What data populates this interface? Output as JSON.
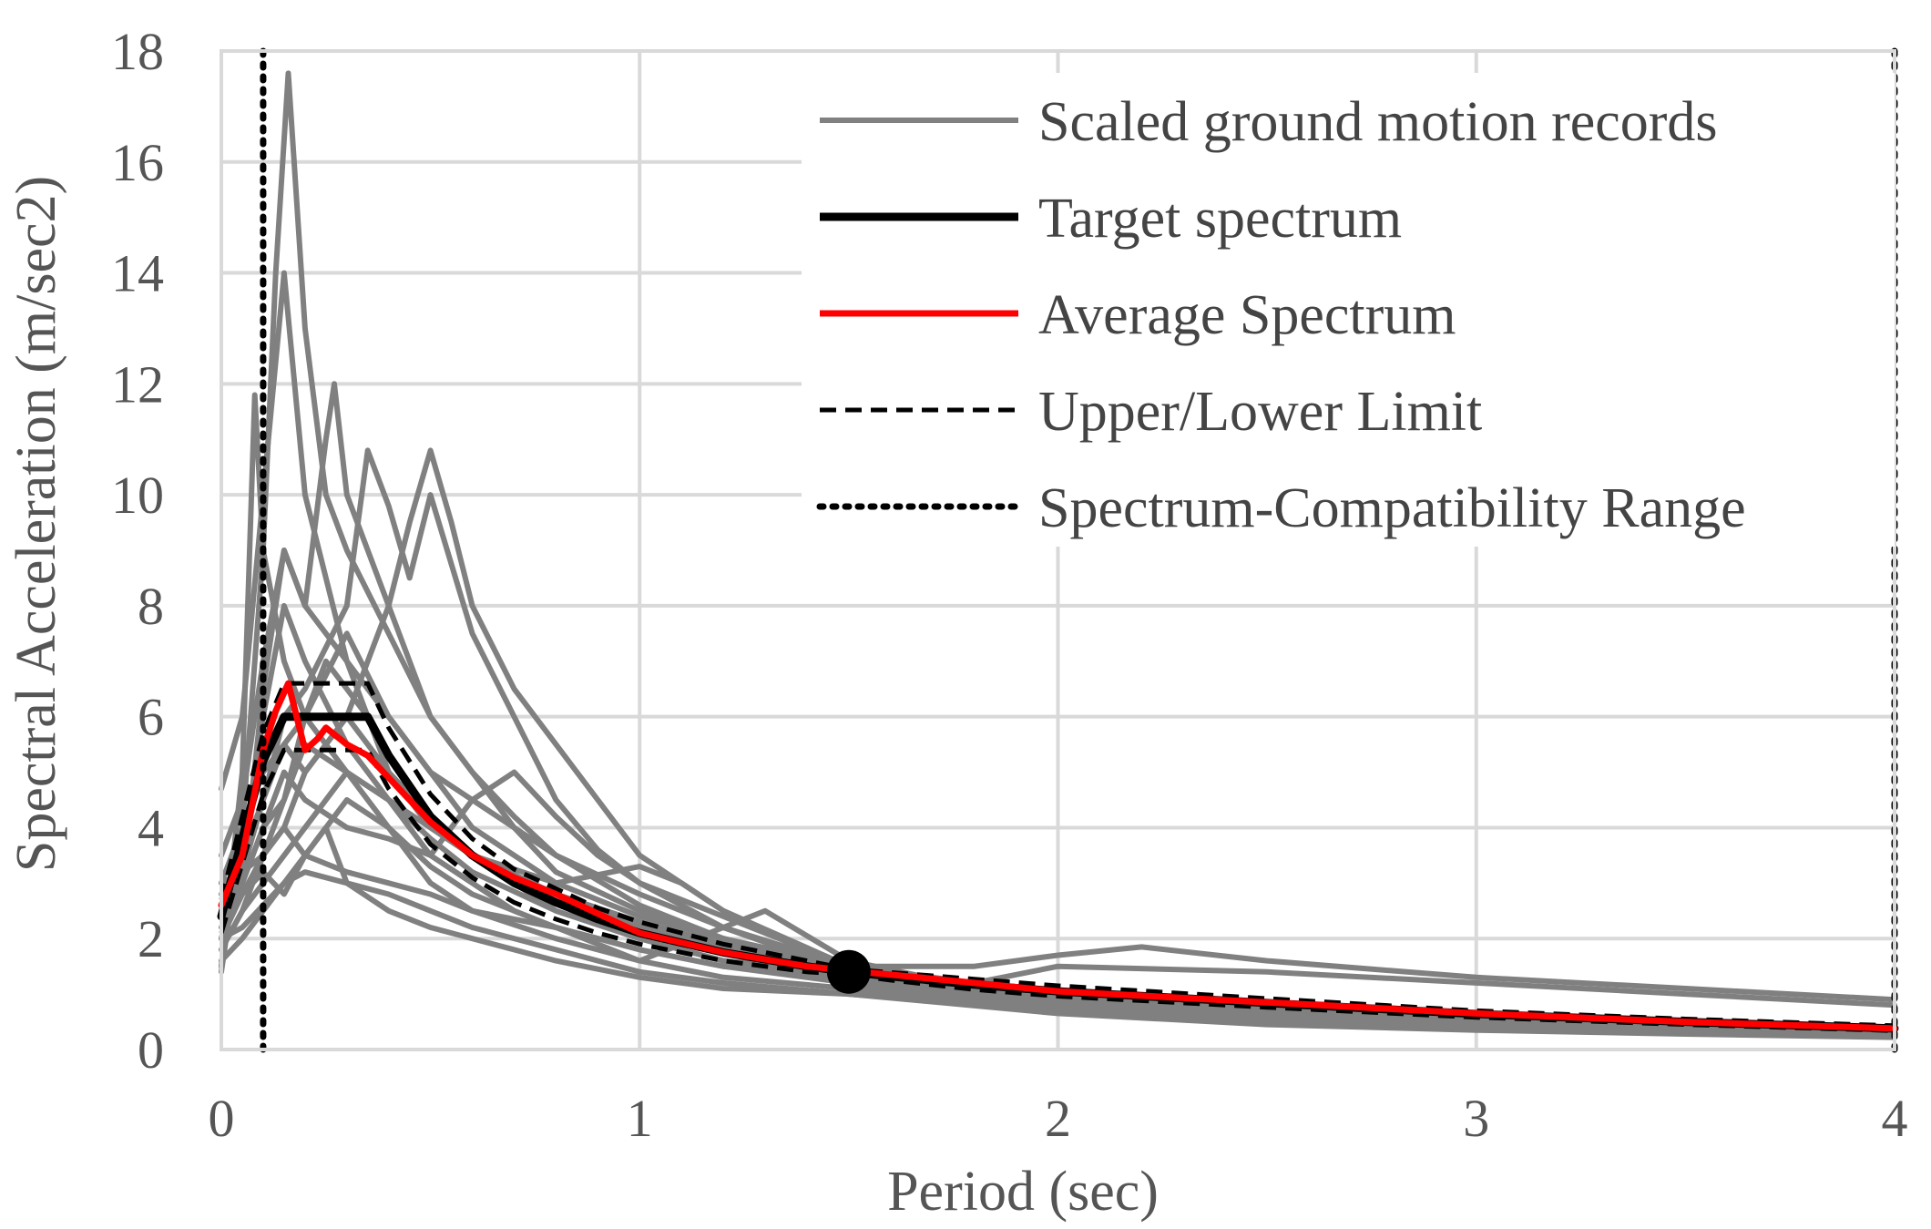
{
  "chart_data": {
    "type": "line",
    "title": "",
    "xlabel": "Period (sec)",
    "ylabel": "Spectral Acceleration (m/sec2)",
    "xlim": [
      0,
      4
    ],
    "ylim": [
      0,
      18
    ],
    "x_ticks": [
      0,
      1,
      2,
      3,
      4
    ],
    "y_ticks": [
      0,
      2,
      4,
      6,
      8,
      10,
      12,
      14,
      16,
      18
    ],
    "grid": true,
    "legend_position": "top-right",
    "legend": [
      {
        "label": "Scaled ground motion records",
        "style": "records"
      },
      {
        "label": "Target spectrum",
        "style": "target"
      },
      {
        "label": "Average Spectrum",
        "style": "average"
      },
      {
        "label": "Upper/Lower Limit",
        "style": "limit"
      },
      {
        "label": "Spectrum-Compatibility Range",
        "style": "range"
      }
    ],
    "styles": {
      "records": {
        "color": "#808080",
        "dash": "",
        "width": 6
      },
      "target": {
        "color": "#000000",
        "dash": "",
        "width": 9
      },
      "average": {
        "color": "#ff0000",
        "dash": "",
        "width": 7
      },
      "limit": {
        "color": "#000000",
        "dash": "18,10",
        "width": 5
      },
      "range": {
        "color": "#000000",
        "dash": "4,10",
        "width": 7
      }
    },
    "series": [
      {
        "name": "Target spectrum",
        "style": "target",
        "x": [
          0,
          0.1,
          0.15,
          0.2,
          0.25,
          0.3,
          0.35,
          0.4,
          0.5,
          0.6,
          0.7,
          0.8,
          0.9,
          1.0,
          1.2,
          1.4,
          1.5,
          1.6,
          1.8,
          2.0,
          2.5,
          3.0,
          3.5,
          4.0
        ],
        "y": [
          2.4,
          5.2,
          6.0,
          6.0,
          6.0,
          6.0,
          6.0,
          5.3,
          4.2,
          3.5,
          3.0,
          2.65,
          2.35,
          2.1,
          1.75,
          1.5,
          1.4,
          1.32,
          1.17,
          1.05,
          0.84,
          0.64,
          0.5,
          0.38
        ]
      },
      {
        "name": "Upper limit",
        "style": "limit",
        "x": [
          0,
          0.1,
          0.15,
          0.2,
          0.25,
          0.3,
          0.35,
          0.4,
          0.5,
          0.6,
          0.7,
          0.8,
          0.9,
          1.0,
          1.2,
          1.4,
          1.5,
          1.6,
          1.8,
          2.0,
          2.5,
          3.0,
          3.5,
          4.0
        ],
        "y": [
          2.7,
          5.7,
          6.6,
          6.6,
          6.6,
          6.6,
          6.6,
          5.8,
          4.6,
          3.8,
          3.25,
          2.9,
          2.55,
          2.3,
          1.9,
          1.6,
          1.45,
          1.39,
          1.27,
          1.15,
          0.92,
          0.7,
          0.55,
          0.43
        ]
      },
      {
        "name": "Lower limit",
        "style": "limit",
        "x": [
          0,
          0.1,
          0.15,
          0.2,
          0.25,
          0.3,
          0.35,
          0.4,
          0.5,
          0.6,
          0.7,
          0.8,
          0.9,
          1.0,
          1.2,
          1.4,
          1.5,
          1.6,
          1.8,
          2.0,
          2.5,
          3.0,
          3.5,
          4.0
        ],
        "y": [
          2.1,
          4.6,
          5.4,
          5.4,
          5.4,
          5.4,
          5.4,
          4.7,
          3.7,
          3.1,
          2.65,
          2.35,
          2.1,
          1.9,
          1.6,
          1.4,
          1.35,
          1.25,
          1.08,
          0.96,
          0.76,
          0.58,
          0.45,
          0.34
        ]
      },
      {
        "name": "Average Spectrum",
        "style": "average",
        "x": [
          0,
          0.05,
          0.1,
          0.13,
          0.16,
          0.2,
          0.23,
          0.25,
          0.3,
          0.35,
          0.4,
          0.5,
          0.6,
          0.7,
          0.8,
          0.9,
          1.0,
          1.2,
          1.4,
          1.5,
          1.6,
          1.8,
          2.0,
          2.5,
          3.0,
          3.5,
          4.0
        ],
        "y": [
          2.6,
          3.5,
          5.4,
          6.1,
          6.6,
          5.4,
          5.6,
          5.8,
          5.5,
          5.3,
          4.9,
          4.1,
          3.5,
          3.1,
          2.8,
          2.45,
          2.1,
          1.75,
          1.5,
          1.42,
          1.35,
          1.2,
          1.05,
          0.85,
          0.65,
          0.5,
          0.38
        ]
      },
      {
        "name": "Record 1",
        "style": "records",
        "x": [
          0,
          0.05,
          0.1,
          0.13,
          0.16,
          0.2,
          0.25,
          0.3,
          0.4,
          0.5,
          0.6,
          0.7,
          0.8,
          1.0,
          1.2,
          1.5,
          2.0,
          2.5,
          3.0,
          3.5,
          4.0
        ],
        "y": [
          1.4,
          4.0,
          9.0,
          14.0,
          17.6,
          13.0,
          10.0,
          9.0,
          7.5,
          6.0,
          5.0,
          4.2,
          3.5,
          2.6,
          2.0,
          1.4,
          0.9,
          0.7,
          0.5,
          0.4,
          0.3
        ]
      },
      {
        "name": "Record 2",
        "style": "records",
        "x": [
          0,
          0.05,
          0.1,
          0.15,
          0.2,
          0.25,
          0.27,
          0.3,
          0.4,
          0.5,
          0.6,
          0.7,
          0.8,
          1.0,
          1.2,
          1.5,
          2.0,
          2.5,
          3.0,
          3.5,
          4.0
        ],
        "y": [
          2.0,
          3.0,
          6.5,
          9.0,
          8.0,
          11.0,
          12.0,
          10.0,
          8.0,
          6.0,
          5.0,
          4.0,
          3.2,
          2.5,
          2.0,
          1.4,
          0.8,
          0.6,
          0.5,
          0.4,
          0.3
        ]
      },
      {
        "name": "Record 3",
        "style": "records",
        "x": [
          0,
          0.05,
          0.1,
          0.15,
          0.2,
          0.3,
          0.35,
          0.4,
          0.45,
          0.5,
          0.6,
          0.7,
          0.8,
          0.9,
          1.0,
          1.2,
          1.5,
          2.0,
          2.5,
          3.0,
          3.5,
          4.0
        ],
        "y": [
          2.5,
          3.2,
          4.5,
          6.0,
          6.5,
          8.0,
          10.8,
          9.8,
          8.5,
          10.0,
          7.5,
          6.0,
          4.5,
          3.6,
          3.0,
          2.2,
          1.4,
          0.8,
          0.6,
          0.5,
          0.4,
          0.3
        ]
      },
      {
        "name": "Record 4",
        "style": "records",
        "x": [
          0,
          0.05,
          0.1,
          0.15,
          0.2,
          0.3,
          0.4,
          0.45,
          0.5,
          0.55,
          0.6,
          0.7,
          0.8,
          0.9,
          1.0,
          1.2,
          1.5,
          2.0,
          2.5,
          3.0,
          3.5,
          4.0
        ],
        "y": [
          3.0,
          4.0,
          5.0,
          5.5,
          5.0,
          6.0,
          8.0,
          9.5,
          10.8,
          9.5,
          8.0,
          6.5,
          5.5,
          4.5,
          3.5,
          2.5,
          1.5,
          0.9,
          0.7,
          0.5,
          0.4,
          0.3
        ]
      },
      {
        "name": "Record 5",
        "style": "records",
        "x": [
          0,
          0.05,
          0.08,
          0.1,
          0.15,
          0.2,
          0.3,
          0.4,
          0.5,
          0.6,
          0.8,
          1.0,
          1.2,
          1.5,
          2.0,
          2.5,
          3.0,
          3.5,
          4.0
        ],
        "y": [
          1.5,
          5.0,
          11.8,
          9.0,
          7.0,
          6.0,
          5.0,
          4.0,
          3.3,
          2.8,
          2.2,
          1.8,
          1.5,
          1.3,
          0.8,
          0.6,
          0.5,
          0.4,
          0.3
        ]
      },
      {
        "name": "Record 6",
        "style": "records",
        "x": [
          0,
          0.05,
          0.1,
          0.15,
          0.2,
          0.3,
          0.4,
          0.5,
          0.6,
          0.8,
          1.0,
          1.2,
          1.5,
          1.8,
          2.0,
          2.2,
          2.5,
          3.0,
          3.5,
          4.0
        ],
        "y": [
          4.7,
          6.0,
          10.0,
          14.0,
          10.0,
          7.0,
          5.0,
          4.0,
          3.5,
          2.8,
          2.2,
          1.8,
          1.5,
          1.5,
          1.7,
          1.85,
          1.6,
          1.3,
          1.1,
          0.9
        ]
      },
      {
        "name": "Record 7",
        "style": "records",
        "x": [
          0,
          0.05,
          0.1,
          0.15,
          0.2,
          0.3,
          0.4,
          0.5,
          0.6,
          0.8,
          1.0,
          1.2,
          1.5,
          1.8,
          2.0,
          2.5,
          3.0,
          3.5,
          4.0
        ],
        "y": [
          2.0,
          3.5,
          6.0,
          8.0,
          7.0,
          5.5,
          4.5,
          3.8,
          3.2,
          2.5,
          2.0,
          1.6,
          1.4,
          1.2,
          1.5,
          1.4,
          1.2,
          1.0,
          0.8
        ]
      },
      {
        "name": "Record 8",
        "style": "records",
        "x": [
          0,
          0.05,
          0.1,
          0.15,
          0.2,
          0.25,
          0.3,
          0.35,
          0.4,
          0.5,
          0.6,
          0.8,
          1.0,
          1.2,
          1.5,
          2.0,
          2.5,
          3.0,
          3.5,
          4.0
        ],
        "y": [
          3.0,
          3.2,
          3.5,
          4.5,
          6.0,
          7.0,
          6.5,
          6.0,
          5.0,
          4.2,
          3.5,
          2.5,
          2.0,
          1.6,
          1.3,
          0.9,
          0.7,
          0.5,
          0.4,
          0.3
        ]
      },
      {
        "name": "Record 9",
        "style": "records",
        "x": [
          0,
          0.05,
          0.1,
          0.15,
          0.2,
          0.3,
          0.4,
          0.5,
          0.6,
          0.7,
          0.8,
          1.0,
          1.2,
          1.5,
          2.0,
          2.5,
          3.0,
          3.5,
          4.0
        ],
        "y": [
          1.8,
          2.5,
          3.0,
          3.5,
          4.0,
          5.0,
          4.5,
          3.5,
          3.0,
          2.5,
          2.2,
          1.6,
          1.3,
          1.1,
          0.7,
          0.5,
          0.4,
          0.3,
          0.25
        ]
      },
      {
        "name": "Record 10",
        "style": "records",
        "x": [
          0,
          0.05,
          0.1,
          0.15,
          0.2,
          0.25,
          0.3,
          0.4,
          0.5,
          0.6,
          0.8,
          1.0,
          1.2,
          1.5,
          2.0,
          2.5,
          3.0,
          3.5,
          4.0
        ],
        "y": [
          2.2,
          2.8,
          3.2,
          2.8,
          3.5,
          4.0,
          3.0,
          2.8,
          2.5,
          2.2,
          1.8,
          1.4,
          1.2,
          1.0,
          0.7,
          0.5,
          0.4,
          0.3,
          0.25
        ]
      },
      {
        "name": "Record 11",
        "style": "records",
        "x": [
          0,
          0.05,
          0.1,
          0.15,
          0.2,
          0.3,
          0.4,
          0.5,
          0.6,
          0.7,
          0.8,
          0.9,
          1.0,
          1.2,
          1.5,
          2.0,
          2.5,
          3.0,
          3.5,
          4.0
        ],
        "y": [
          2.5,
          3.0,
          4.0,
          5.0,
          4.5,
          4.0,
          3.8,
          3.5,
          4.5,
          5.0,
          4.2,
          3.5,
          3.0,
          2.4,
          1.5,
          0.9,
          0.6,
          0.5,
          0.4,
          0.3
        ]
      },
      {
        "name": "Record 12",
        "style": "records",
        "x": [
          0,
          0.05,
          0.1,
          0.15,
          0.2,
          0.3,
          0.4,
          0.5,
          0.6,
          0.8,
          1.0,
          1.1,
          1.2,
          1.5,
          2.0,
          2.5,
          3.0,
          3.5,
          4.0
        ],
        "y": [
          2.0,
          2.8,
          3.5,
          4.0,
          5.0,
          6.0,
          5.0,
          4.0,
          3.5,
          3.0,
          3.3,
          3.0,
          2.5,
          1.5,
          0.9,
          0.6,
          0.5,
          0.4,
          0.3
        ]
      },
      {
        "name": "Record 13",
        "style": "records",
        "x": [
          0,
          0.05,
          0.1,
          0.15,
          0.2,
          0.3,
          0.4,
          0.5,
          0.6,
          0.8,
          1.0,
          1.2,
          1.3,
          1.5,
          2.0,
          2.5,
          3.0,
          3.5,
          4.0
        ],
        "y": [
          1.6,
          2.0,
          2.5,
          3.0,
          3.5,
          4.5,
          4.0,
          3.0,
          2.5,
          2.0,
          1.6,
          2.2,
          2.5,
          1.6,
          0.8,
          0.6,
          0.45,
          0.35,
          0.3
        ]
      },
      {
        "name": "Record 14",
        "style": "records",
        "x": [
          0,
          0.05,
          0.1,
          0.15,
          0.2,
          0.3,
          0.4,
          0.5,
          0.6,
          0.8,
          1.0,
          1.2,
          1.5,
          2.0,
          2.5,
          3.0,
          3.5,
          4.0
        ],
        "y": [
          2.8,
          3.5,
          4.5,
          5.5,
          6.0,
          7.5,
          6.0,
          5.0,
          4.0,
          3.0,
          2.4,
          2.0,
          1.5,
          1.0,
          0.75,
          0.6,
          0.45,
          0.35
        ]
      },
      {
        "name": "Record 15",
        "style": "records",
        "x": [
          0,
          0.05,
          0.1,
          0.15,
          0.2,
          0.3,
          0.4,
          0.5,
          0.6,
          0.8,
          1.0,
          1.2,
          1.5,
          2.0,
          2.5,
          3.0,
          3.5,
          4.0
        ],
        "y": [
          2.0,
          2.2,
          2.6,
          3.0,
          3.2,
          3.0,
          2.5,
          2.2,
          2.0,
          1.6,
          1.3,
          1.1,
          1.0,
          0.65,
          0.45,
          0.35,
          0.28,
          0.22
        ]
      },
      {
        "name": "Record 16",
        "style": "records",
        "x": [
          0,
          0.05,
          0.1,
          0.15,
          0.2,
          0.3,
          0.4,
          0.5,
          0.6,
          0.8,
          1.0,
          1.2,
          1.5,
          2.0,
          2.5,
          3.0,
          3.5,
          4.0
        ],
        "y": [
          3.5,
          4.5,
          7.0,
          9.0,
          8.0,
          7.0,
          6.0,
          5.0,
          4.5,
          3.5,
          2.8,
          2.2,
          1.5,
          0.9,
          0.65,
          0.5,
          0.4,
          0.3
        ]
      },
      {
        "name": "Record 17",
        "style": "records",
        "x": [
          0,
          0.05,
          0.1,
          0.15,
          0.2,
          0.3,
          0.4,
          0.5,
          0.6,
          0.8,
          1.0,
          1.2,
          1.5,
          2.0,
          2.5,
          3.0,
          3.5,
          4.0
        ],
        "y": [
          1.8,
          2.5,
          3.5,
          4.0,
          3.5,
          3.2,
          3.0,
          2.8,
          2.5,
          2.2,
          1.8,
          1.5,
          1.2,
          0.75,
          0.55,
          0.42,
          0.33,
          0.25
        ]
      },
      {
        "name": "Record 18",
        "style": "records",
        "x": [
          0,
          0.05,
          0.1,
          0.15,
          0.2,
          0.3,
          0.4,
          0.5,
          0.6,
          0.8,
          1.0,
          1.2,
          1.5,
          2.0,
          2.5,
          3.0,
          3.5,
          4.0
        ],
        "y": [
          2.5,
          3.0,
          4.0,
          4.5,
          5.5,
          5.0,
          4.5,
          4.0,
          3.5,
          2.8,
          2.3,
          1.9,
          1.4,
          0.95,
          0.7,
          0.55,
          0.42,
          0.32
        ]
      }
    ],
    "anchor_point": {
      "x": 1.5,
      "y": 1.4
    }
  }
}
